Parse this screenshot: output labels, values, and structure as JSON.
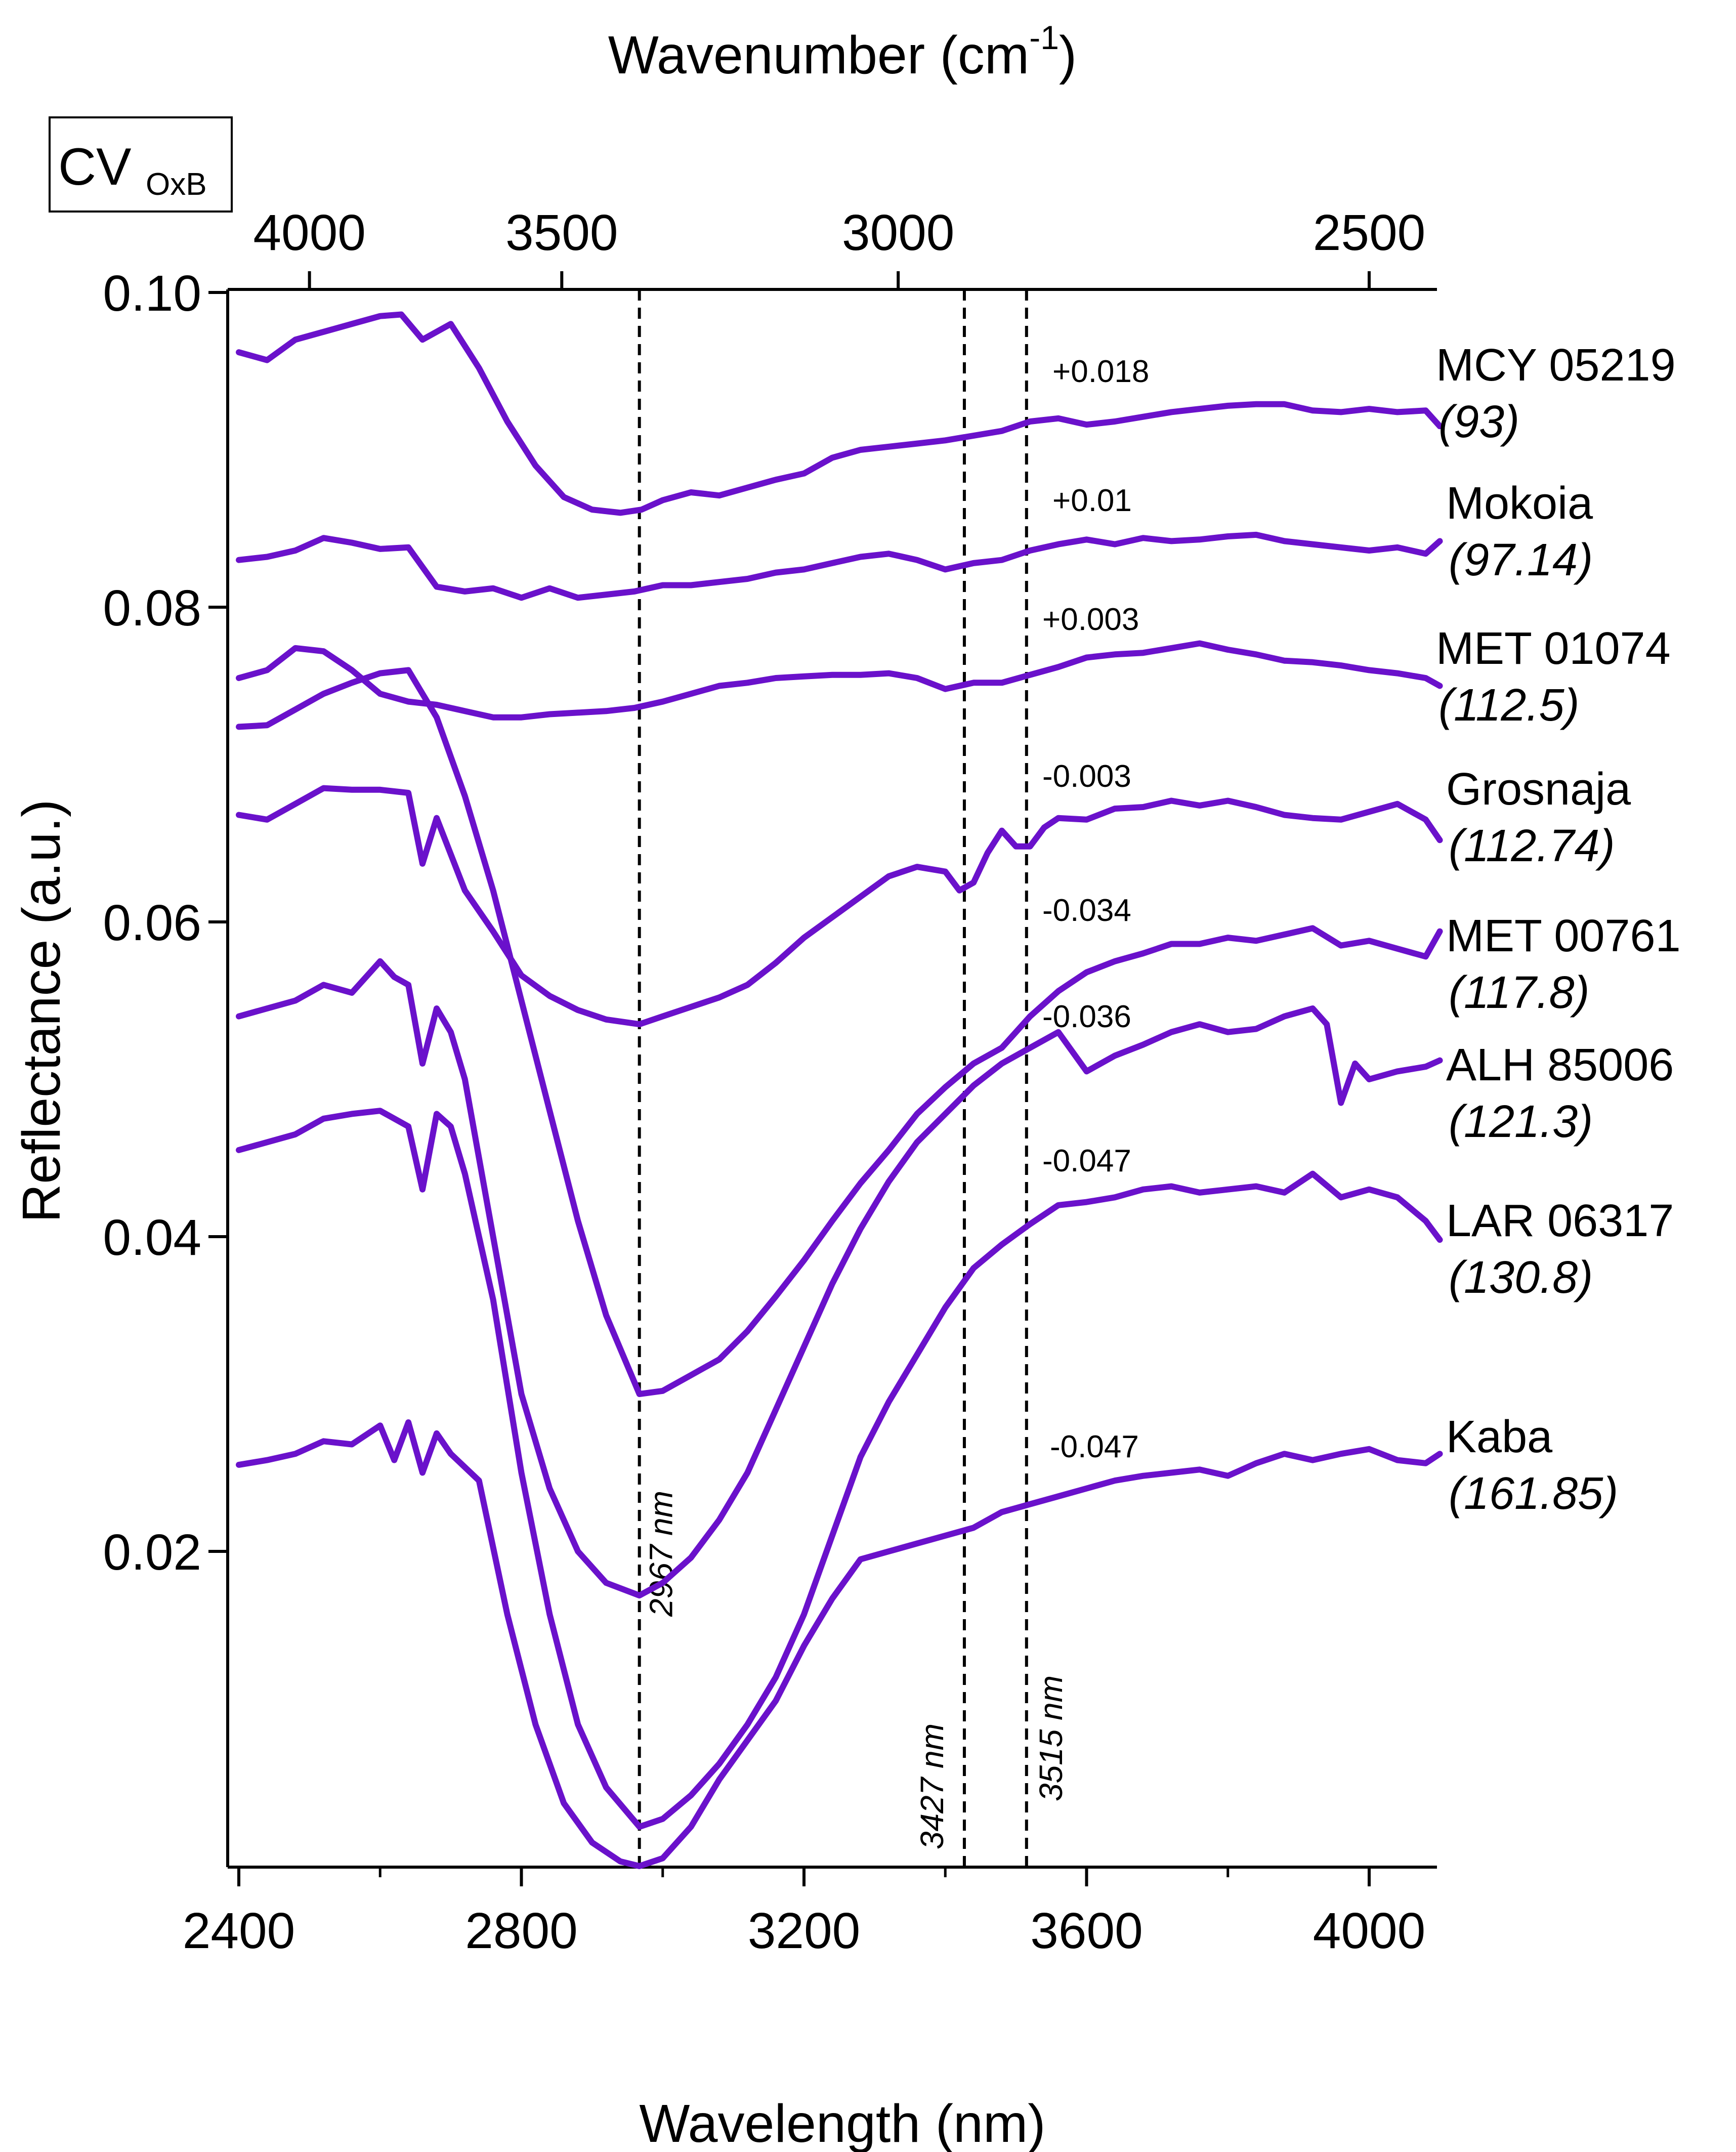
{
  "badge": {
    "main": "CV",
    "sub": "OxB"
  },
  "chart_data": {
    "type": "line",
    "title": "",
    "xlabel": "Wavelength (nm)",
    "ylabel": "Reflectance (a.u.)",
    "top_xlabel_main": "Wavenumber (cm",
    "top_xlabel_sup": "-1",
    "top_xlabel_close": ")",
    "xlim": [
      2385,
      4100
    ],
    "ylim": [
      0.0,
      0.1
    ],
    "x_ticks": [
      2400,
      2800,
      3200,
      3600,
      4000
    ],
    "x_tick_labels": [
      "2400",
      "2800",
      "3200",
      "3600",
      "4000"
    ],
    "x_minor_ticks": [
      2600,
      3000,
      3400,
      3800
    ],
    "y_ticks": [
      0.02,
      0.04,
      0.06,
      0.08,
      0.1
    ],
    "y_tick_labels": [
      "0.02",
      "0.04",
      "0.06",
      "0.08",
      "0.10"
    ],
    "top_ticks_wavenumber": [
      4000,
      3500,
      3000,
      2500
    ],
    "top_tick_labels": [
      "4000",
      "3500",
      "3000",
      "2500"
    ],
    "vlines": [
      {
        "x": 2967,
        "label": "2967 nm"
      },
      {
        "x": 3427,
        "label": "3427 nm"
      },
      {
        "x": 3515,
        "label": "3515 nm"
      }
    ],
    "series": [
      {
        "name": "MCY 05219",
        "sub": "(93)",
        "offset": "+0.018",
        "x": [
          2400,
          2440,
          2480,
          2520,
          2560,
          2600,
          2630,
          2660,
          2700,
          2740,
          2780,
          2820,
          2860,
          2900,
          2940,
          2970,
          3000,
          3040,
          3080,
          3120,
          3160,
          3200,
          3240,
          3280,
          3320,
          3360,
          3400,
          3440,
          3480,
          3520,
          3560,
          3600,
          3640,
          3680,
          3720,
          3760,
          3800,
          3840,
          3880,
          3920,
          3960,
          4000,
          4040,
          4080,
          4100
        ],
        "y": [
          0.0962,
          0.0957,
          0.097,
          0.0975,
          0.098,
          0.0985,
          0.0986,
          0.097,
          0.098,
          0.0952,
          0.0918,
          0.089,
          0.087,
          0.0862,
          0.086,
          0.0862,
          0.0868,
          0.0873,
          0.0871,
          0.0876,
          0.0881,
          0.0885,
          0.0895,
          0.09,
          0.0902,
          0.0904,
          0.0906,
          0.0909,
          0.0912,
          0.0918,
          0.092,
          0.0916,
          0.0918,
          0.0921,
          0.0924,
          0.0926,
          0.0928,
          0.0929,
          0.0929,
          0.0925,
          0.0924,
          0.0926,
          0.0924,
          0.0925,
          0.0915
        ]
      },
      {
        "name": "Mokoia",
        "sub": "(97.14)",
        "offset": "+0.01",
        "x": [
          2400,
          2440,
          2480,
          2520,
          2560,
          2600,
          2640,
          2680,
          2720,
          2760,
          2800,
          2840,
          2880,
          2920,
          2960,
          3000,
          3040,
          3080,
          3120,
          3160,
          3200,
          3240,
          3280,
          3320,
          3360,
          3400,
          3440,
          3480,
          3520,
          3560,
          3600,
          3640,
          3680,
          3720,
          3760,
          3800,
          3840,
          3880,
          3920,
          3960,
          4000,
          4040,
          4080,
          4100
        ],
        "y": [
          0.083,
          0.0832,
          0.0836,
          0.0844,
          0.0841,
          0.0837,
          0.0838,
          0.0813,
          0.081,
          0.0812,
          0.0806,
          0.0812,
          0.0806,
          0.0808,
          0.081,
          0.0814,
          0.0814,
          0.0816,
          0.0818,
          0.0822,
          0.0824,
          0.0828,
          0.0832,
          0.0834,
          0.083,
          0.0824,
          0.0828,
          0.083,
          0.0836,
          0.084,
          0.0843,
          0.084,
          0.0844,
          0.0842,
          0.0843,
          0.0845,
          0.0846,
          0.0842,
          0.084,
          0.0838,
          0.0836,
          0.0838,
          0.0834,
          0.0842
        ]
      },
      {
        "name": "MET 01074",
        "sub": "(112.5)",
        "offset": "+0.003",
        "x": [
          2400,
          2440,
          2480,
          2520,
          2560,
          2600,
          2640,
          2680,
          2720,
          2760,
          2800,
          2840,
          2880,
          2920,
          2960,
          3000,
          3040,
          3080,
          3120,
          3160,
          3200,
          3240,
          3280,
          3320,
          3360,
          3400,
          3440,
          3480,
          3520,
          3560,
          3600,
          3640,
          3680,
          3720,
          3760,
          3800,
          3840,
          3880,
          3920,
          3960,
          4000,
          4040,
          4080,
          4100
        ],
        "y": [
          0.0755,
          0.076,
          0.0774,
          0.0772,
          0.076,
          0.0745,
          0.074,
          0.0738,
          0.0734,
          0.073,
          0.073,
          0.0732,
          0.0733,
          0.0734,
          0.0736,
          0.074,
          0.0745,
          0.075,
          0.0752,
          0.0755,
          0.0756,
          0.0757,
          0.0757,
          0.0758,
          0.0755,
          0.0748,
          0.0752,
          0.0752,
          0.0757,
          0.0762,
          0.0768,
          0.077,
          0.0771,
          0.0774,
          0.0777,
          0.0773,
          0.077,
          0.0766,
          0.0765,
          0.0763,
          0.076,
          0.0758,
          0.0755,
          0.075
        ]
      },
      {
        "name": "Grosnaja",
        "sub": "(112.74)",
        "offset": "-0.003",
        "x": [
          2400,
          2440,
          2480,
          2520,
          2560,
          2600,
          2640,
          2660,
          2680,
          2720,
          2760,
          2800,
          2840,
          2880,
          2920,
          2967,
          3000,
          3040,
          3080,
          3120,
          3160,
          3200,
          3240,
          3280,
          3320,
          3360,
          3400,
          3420,
          3440,
          3460,
          3480,
          3500,
          3520,
          3540,
          3560,
          3600,
          3640,
          3680,
          3720,
          3760,
          3800,
          3840,
          3880,
          3920,
          3960,
          4000,
          4040,
          4080,
          4100
        ],
        "y": [
          0.0668,
          0.0665,
          0.0675,
          0.0685,
          0.0684,
          0.0684,
          0.0682,
          0.0637,
          0.0666,
          0.062,
          0.0594,
          0.0566,
          0.0553,
          0.0544,
          0.0538,
          0.0535,
          0.054,
          0.0546,
          0.0552,
          0.056,
          0.0574,
          0.059,
          0.0603,
          0.0616,
          0.0629,
          0.0635,
          0.0632,
          0.062,
          0.0625,
          0.0644,
          0.0658,
          0.0648,
          0.0648,
          0.066,
          0.0666,
          0.0665,
          0.0672,
          0.0673,
          0.0677,
          0.0674,
          0.0677,
          0.0673,
          0.0668,
          0.0666,
          0.0665,
          0.067,
          0.0675,
          0.0665,
          0.0652
        ]
      },
      {
        "name": "MET 00761",
        "sub": "(117.8)",
        "offset": "-0.034",
        "x": [
          2400,
          2440,
          2480,
          2520,
          2560,
          2600,
          2640,
          2660,
          2680,
          2700,
          2720,
          2760,
          2800,
          2840,
          2880,
          2920,
          2967,
          3000,
          3040,
          3080,
          3120,
          3160,
          3200,
          3240,
          3280,
          3320,
          3360,
          3400,
          3440,
          3480,
          3520,
          3560,
          3600,
          3640,
          3680,
          3720,
          3760,
          3800,
          3840,
          3880,
          3920,
          3960,
          4000,
          4040,
          4080,
          4100
        ],
        "y": [
          0.0724,
          0.0725,
          0.0735,
          0.0745,
          0.0752,
          0.0758,
          0.076,
          0.0745,
          0.073,
          0.0705,
          0.068,
          0.062,
          0.055,
          0.048,
          0.041,
          0.035,
          0.03,
          0.0302,
          0.0312,
          0.0322,
          0.034,
          0.0362,
          0.0385,
          0.041,
          0.0434,
          0.0455,
          0.0478,
          0.0495,
          0.051,
          0.052,
          0.054,
          0.0556,
          0.0568,
          0.0575,
          0.058,
          0.0586,
          0.0586,
          0.059,
          0.0588,
          0.0592,
          0.0596,
          0.0585,
          0.0588,
          0.0583,
          0.0578,
          0.0594
        ]
      },
      {
        "name": "ALH 85006",
        "sub": "(121.3)",
        "offset": "-0.036",
        "x": [
          2400,
          2440,
          2480,
          2520,
          2560,
          2600,
          2620,
          2640,
          2660,
          2680,
          2700,
          2720,
          2760,
          2800,
          2840,
          2880,
          2920,
          2967,
          3000,
          3040,
          3080,
          3120,
          3160,
          3200,
          3240,
          3280,
          3320,
          3360,
          3400,
          3440,
          3480,
          3520,
          3560,
          3600,
          3640,
          3680,
          3720,
          3760,
          3800,
          3840,
          3880,
          3920,
          3940,
          3960,
          3980,
          4000,
          4040,
          4080,
          4100
        ],
        "y": [
          0.054,
          0.0545,
          0.055,
          0.056,
          0.0555,
          0.0575,
          0.0565,
          0.056,
          0.051,
          0.0545,
          0.053,
          0.05,
          0.04,
          0.03,
          0.024,
          0.02,
          0.018,
          0.0172,
          0.018,
          0.0196,
          0.022,
          0.025,
          0.029,
          0.033,
          0.037,
          0.0405,
          0.0435,
          0.046,
          0.0478,
          0.0496,
          0.051,
          0.052,
          0.053,
          0.0505,
          0.0515,
          0.0522,
          0.053,
          0.0535,
          0.053,
          0.0532,
          0.054,
          0.0545,
          0.0535,
          0.0485,
          0.051,
          0.05,
          0.0505,
          0.0508,
          0.0512
        ]
      },
      {
        "name": "LAR 06317",
        "sub": "(130.8)",
        "offset": "-0.047",
        "x": [
          2400,
          2440,
          2480,
          2520,
          2560,
          2600,
          2640,
          2660,
          2680,
          2700,
          2720,
          2760,
          2800,
          2840,
          2880,
          2920,
          2967,
          3000,
          3040,
          3080,
          3120,
          3160,
          3200,
          3240,
          3280,
          3320,
          3360,
          3400,
          3440,
          3480,
          3520,
          3560,
          3600,
          3640,
          3680,
          3720,
          3760,
          3800,
          3840,
          3880,
          3920,
          3960,
          4000,
          4040,
          4080,
          4100
        ],
        "y": [
          0.0455,
          0.046,
          0.0465,
          0.0475,
          0.0478,
          0.048,
          0.047,
          0.043,
          0.0478,
          0.047,
          0.044,
          0.036,
          0.025,
          0.016,
          0.009,
          0.005,
          0.0025,
          0.003,
          0.0045,
          0.0065,
          0.009,
          0.012,
          0.016,
          0.021,
          0.026,
          0.0295,
          0.0325,
          0.0355,
          0.038,
          0.0395,
          0.0408,
          0.042,
          0.0422,
          0.0425,
          0.043,
          0.0432,
          0.0428,
          0.043,
          0.0432,
          0.0428,
          0.044,
          0.0425,
          0.043,
          0.0425,
          0.041,
          0.0398
        ]
      },
      {
        "name": "Kaba",
        "sub": "(161.85)",
        "offset": "-0.047",
        "x": [
          2400,
          2440,
          2480,
          2520,
          2560,
          2600,
          2620,
          2640,
          2660,
          2680,
          2700,
          2740,
          2780,
          2820,
          2860,
          2900,
          2940,
          2967,
          3000,
          3040,
          3080,
          3120,
          3160,
          3200,
          3240,
          3280,
          3320,
          3360,
          3400,
          3440,
          3480,
          3520,
          3560,
          3600,
          3640,
          3680,
          3720,
          3760,
          3800,
          3840,
          3880,
          3920,
          3960,
          4000,
          4040,
          4080,
          4100
        ],
        "y": [
          0.0255,
          0.0258,
          0.0262,
          0.027,
          0.0268,
          0.028,
          0.0258,
          0.0282,
          0.025,
          0.0275,
          0.0262,
          0.0245,
          0.016,
          0.009,
          0.004,
          0.0015,
          0.0003,
          0.0,
          0.0005,
          0.0025,
          0.0055,
          0.008,
          0.0105,
          0.014,
          0.017,
          0.0195,
          0.02,
          0.0205,
          0.021,
          0.0215,
          0.0225,
          0.023,
          0.0235,
          0.024,
          0.0245,
          0.0248,
          0.025,
          0.0252,
          0.0248,
          0.0256,
          0.0262,
          0.0258,
          0.0262,
          0.0265,
          0.0258,
          0.0256,
          0.0262
        ]
      }
    ]
  },
  "style": {
    "line_color": "#6a11cb",
    "axis_color": "#000000"
  }
}
